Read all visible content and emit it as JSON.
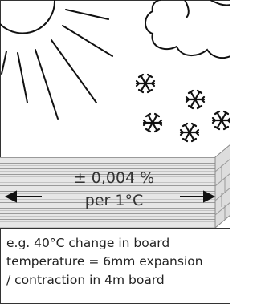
{
  "label": {
    "line1": "± 0,004 %",
    "line2": "per 1°C"
  },
  "caption": [
    "e.g. 40°C change in board",
    "temperature = 6mm expansion",
    "/ contraction in 4m board"
  ]
}
